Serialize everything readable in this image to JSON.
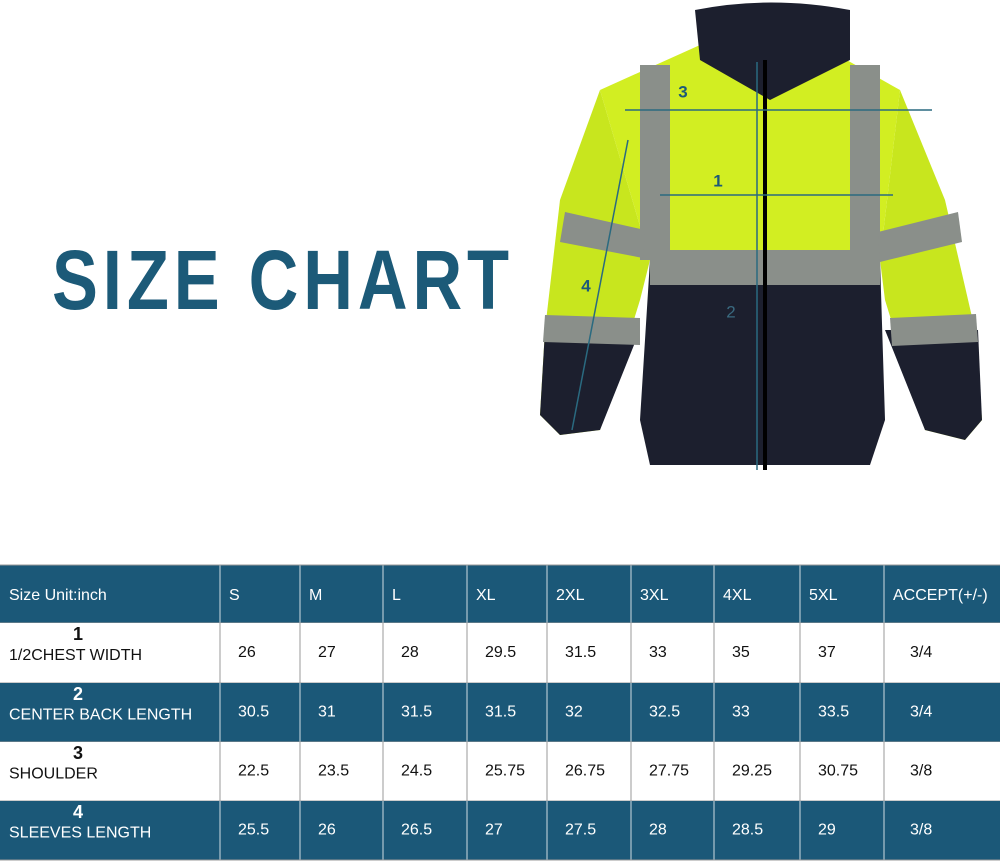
{
  "header": {
    "title": "SIZE CHART"
  },
  "diagram": {
    "markers": [
      "1",
      "2",
      "3",
      "4"
    ]
  },
  "table": {
    "header": [
      "Size   Unit:inch",
      "S",
      "M",
      "L",
      "XL",
      "2XL",
      "3XL",
      "4XL",
      "5XL",
      "ACCEPT(+/-)"
    ],
    "rows": [
      {
        "index": "1",
        "label": "1/2CHEST WIDTH",
        "cells": [
          "26",
          "27",
          "28",
          "29.5",
          "31.5",
          "33",
          "35",
          "37",
          "3/4"
        ]
      },
      {
        "index": "2",
        "label": "CENTER BACK LENGTH",
        "cells": [
          "30.5",
          "31",
          "31.5",
          "31.5",
          "32",
          "32.5",
          "33",
          "33.5",
          "3/4"
        ]
      },
      {
        "index": "3",
        "label": "SHOULDER",
        "cells": [
          "22.5",
          "23.5",
          "24.5",
          "25.75",
          "26.75",
          "27.75",
          "29.25",
          "30.75",
          "3/8"
        ]
      },
      {
        "index": "4",
        "label": "SLEEVES LENGTH",
        "cells": [
          "25.5",
          "26",
          "26.5",
          "27",
          "27.5",
          "28",
          "28.5",
          "29",
          "3/8"
        ]
      }
    ]
  }
}
